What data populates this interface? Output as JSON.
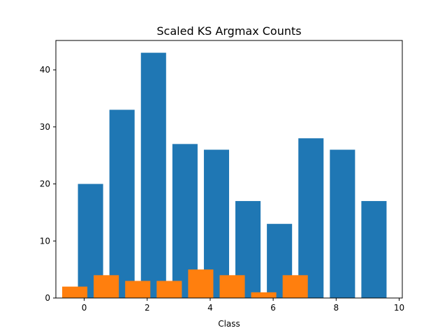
{
  "chart_data": {
    "type": "bar",
    "title": "Scaled KS Argmax Counts",
    "xlabel": "Class",
    "ylabel": "",
    "xlim": [
      -0.9,
      10.1
    ],
    "ylim": [
      0,
      45.15
    ],
    "xticks": [
      0,
      2,
      4,
      6,
      8,
      10
    ],
    "yticks": [
      0,
      10,
      20,
      30,
      40
    ],
    "grid": false,
    "series": [
      {
        "color": "#1f77b4",
        "x": [
          0.2,
          1.2,
          2.2,
          3.2,
          4.2,
          5.2,
          6.2,
          7.2,
          8.2,
          9.2
        ],
        "values": [
          20,
          33,
          43,
          27,
          26,
          17,
          13,
          28,
          26,
          17
        ],
        "width": 0.8
      },
      {
        "color": "#ff7f0e",
        "x": [
          -0.3,
          0.7,
          1.7,
          2.7,
          3.7,
          4.7,
          5.7,
          6.7
        ],
        "values": [
          2,
          4,
          3,
          3,
          5,
          4,
          1,
          4
        ],
        "width": 0.8
      }
    ]
  }
}
